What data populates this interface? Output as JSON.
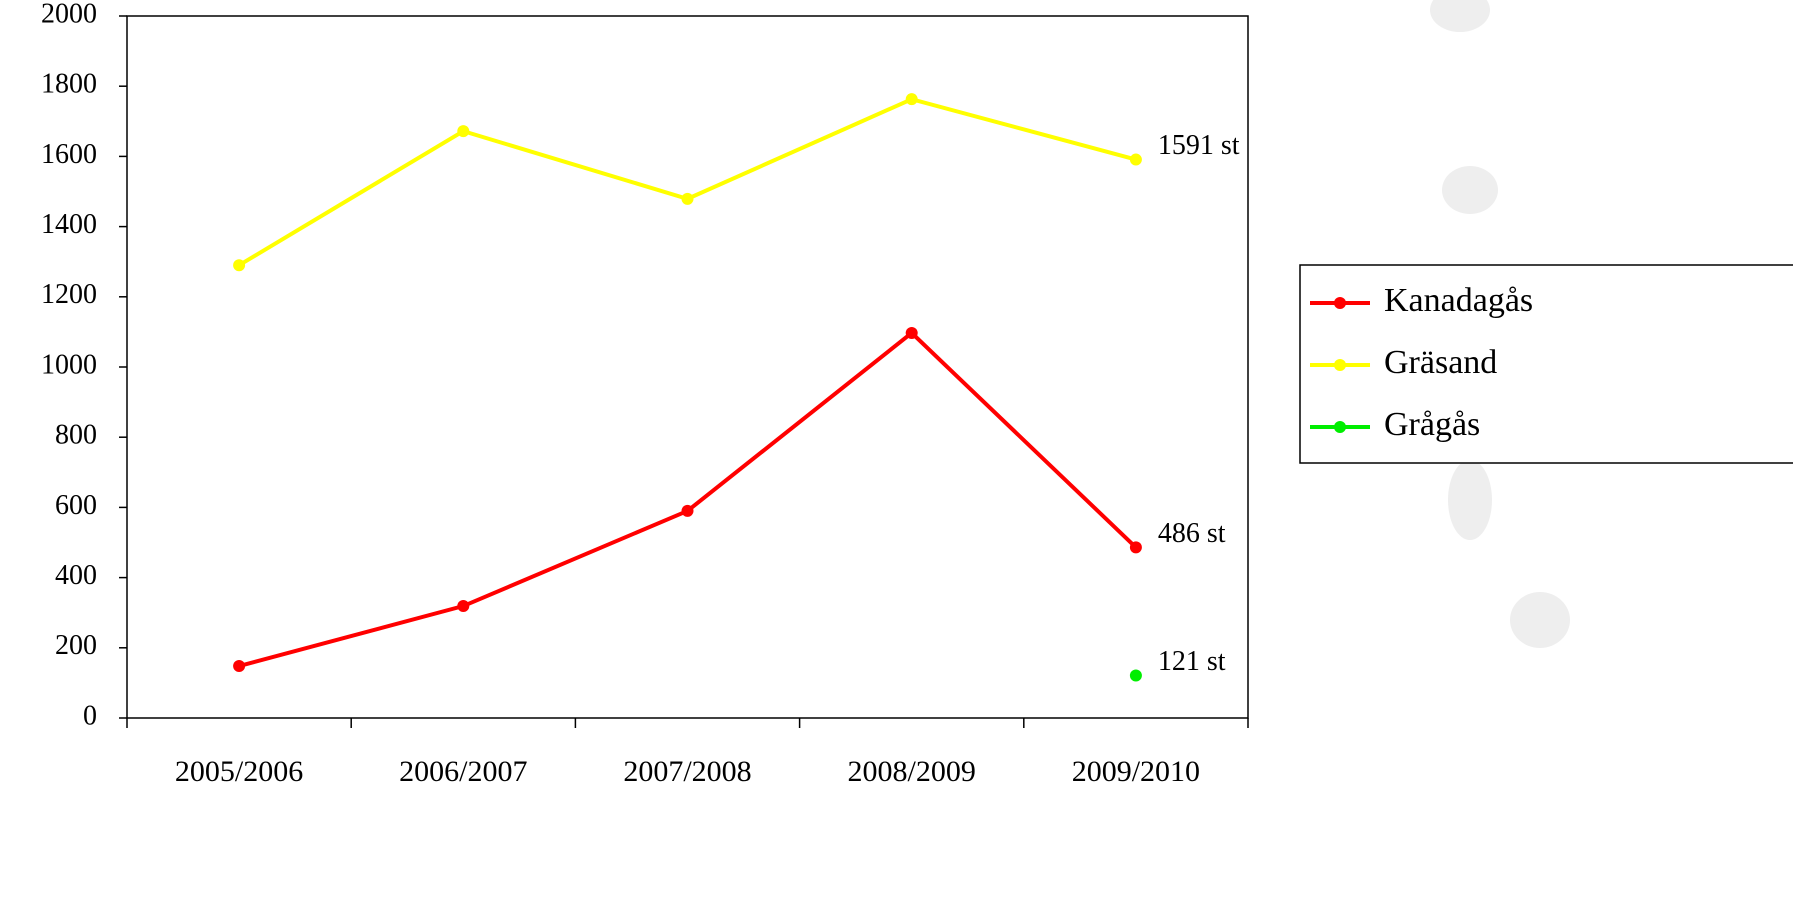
{
  "chart_data": {
    "type": "line",
    "categories": [
      "2005/2006",
      "2006/2007",
      "2007/2008",
      "2008/2009",
      "2009/2010"
    ],
    "series": [
      {
        "name": "Kanadagås",
        "color": "#ff0000",
        "values": [
          148,
          319,
          590,
          1097,
          486
        ],
        "value_labels": [
          null,
          null,
          null,
          null,
          "486 st"
        ]
      },
      {
        "name": "Gräsand",
        "color": "#ffff00",
        "values": [
          1290,
          1672,
          1479,
          1763,
          1591
        ],
        "value_labels": [
          null,
          null,
          null,
          null,
          "1591 st"
        ]
      },
      {
        "name": "Grågås",
        "color": "#00ee00",
        "values": [
          null,
          null,
          null,
          null,
          121
        ],
        "value_labels": [
          null,
          null,
          null,
          null,
          "121 st"
        ]
      }
    ],
    "ylim": [
      0,
      2000
    ],
    "yticks": [
      0,
      200,
      400,
      600,
      800,
      1000,
      1200,
      1400,
      1600,
      1800,
      2000
    ],
    "grid": false,
    "legend": "right"
  }
}
